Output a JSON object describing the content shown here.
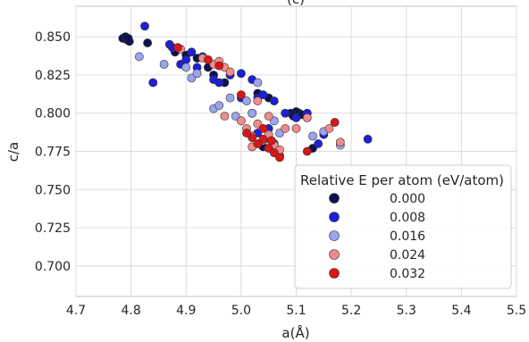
{
  "chart_data": {
    "type": "scatter",
    "title": "(c)",
    "xlabel": "a(Å)",
    "ylabel": "c/a",
    "xlim": [
      4.7,
      5.5
    ],
    "ylim": [
      0.68,
      0.87
    ],
    "xticks": [
      "4.7",
      "4.8",
      "4.9",
      "5.0",
      "5.1",
      "5.2",
      "5.3",
      "5.4",
      "5.5"
    ],
    "yticks": [
      "0.700",
      "0.725",
      "0.750",
      "0.775",
      "0.800",
      "0.825",
      "0.850"
    ],
    "grid": true,
    "legend": {
      "title": "Relative E per atom (eV/atom)",
      "placement": "lower-right",
      "entries": [
        {
          "label": "0.000",
          "color": "#0d1150"
        },
        {
          "label": "0.008",
          "color": "#1f1fd6"
        },
        {
          "label": "0.016",
          "color": "#9da4ee"
        },
        {
          "label": "0.024",
          "color": "#f28a8a"
        },
        {
          "label": "0.032",
          "color": "#d91616"
        }
      ]
    },
    "series": [
      {
        "color": "#0d1150",
        "points": [
          [
            4.785,
            0.849
          ],
          [
            4.79,
            0.85
          ],
          [
            4.793,
            0.848
          ],
          [
            4.797,
            0.847
          ],
          [
            4.795,
            0.849
          ],
          [
            4.83,
            0.846
          ],
          [
            4.88,
            0.84
          ],
          [
            4.9,
            0.838
          ],
          [
            4.92,
            0.836
          ],
          [
            4.94,
            0.83
          ],
          [
            4.95,
            0.825
          ],
          [
            4.97,
            0.82
          ],
          [
            5.03,
            0.813
          ],
          [
            5.05,
            0.81
          ],
          [
            5.09,
            0.8
          ],
          [
            5.1,
            0.801
          ],
          [
            5.105,
            0.8
          ],
          [
            5.11,
            0.799
          ],
          [
            5.095,
            0.798
          ],
          [
            5.02,
            0.785
          ],
          [
            5.04,
            0.778
          ],
          [
            5.06,
            0.775
          ],
          [
            5.07,
            0.772
          ],
          [
            5.13,
            0.777
          ]
        ]
      },
      {
        "color": "#1f1fd6",
        "points": [
          [
            4.825,
            0.857
          ],
          [
            4.84,
            0.82
          ],
          [
            4.87,
            0.845
          ],
          [
            4.875,
            0.843
          ],
          [
            4.89,
            0.832
          ],
          [
            4.9,
            0.835
          ],
          [
            4.91,
            0.84
          ],
          [
            4.92,
            0.83
          ],
          [
            4.93,
            0.837
          ],
          [
            4.95,
            0.822
          ],
          [
            4.96,
            0.82
          ],
          [
            4.98,
            0.825
          ],
          [
            5.0,
            0.826
          ],
          [
            5.02,
            0.822
          ],
          [
            5.03,
            0.81
          ],
          [
            5.04,
            0.812
          ],
          [
            5.06,
            0.808
          ],
          [
            5.08,
            0.8
          ],
          [
            5.1,
            0.797
          ],
          [
            5.12,
            0.8
          ],
          [
            5.14,
            0.78
          ],
          [
            5.15,
            0.786
          ],
          [
            5.23,
            0.783
          ],
          [
            5.03,
            0.787
          ],
          [
            5.05,
            0.79
          ],
          [
            5.06,
            0.78
          ],
          [
            5.02,
            0.8
          ],
          [
            5.0,
            0.81
          ]
        ]
      },
      {
        "color": "#9da4ee",
        "points": [
          [
            4.815,
            0.837
          ],
          [
            4.86,
            0.832
          ],
          [
            4.9,
            0.83
          ],
          [
            4.91,
            0.823
          ],
          [
            4.92,
            0.826
          ],
          [
            4.95,
            0.803
          ],
          [
            4.96,
            0.805
          ],
          [
            4.98,
            0.81
          ],
          [
            4.99,
            0.798
          ],
          [
            5.01,
            0.808
          ],
          [
            5.02,
            0.8
          ],
          [
            5.03,
            0.82
          ],
          [
            5.13,
            0.785
          ],
          [
            5.15,
            0.788
          ],
          [
            5.18,
            0.779
          ],
          [
            5.06,
            0.795
          ],
          [
            5.07,
            0.787
          ]
        ]
      },
      {
        "color": "#f28a8a",
        "points": [
          [
            4.89,
            0.842
          ],
          [
            4.93,
            0.836
          ],
          [
            4.95,
            0.832
          ],
          [
            4.96,
            0.834
          ],
          [
            4.97,
            0.83
          ],
          [
            4.98,
            0.827
          ],
          [
            5.0,
            0.795
          ],
          [
            5.01,
            0.79
          ],
          [
            5.02,
            0.785
          ],
          [
            5.03,
            0.793
          ],
          [
            5.04,
            0.782
          ],
          [
            5.05,
            0.786
          ],
          [
            5.06,
            0.779
          ],
          [
            5.07,
            0.776
          ],
          [
            5.08,
            0.79
          ],
          [
            5.1,
            0.79
          ],
          [
            5.12,
            0.797
          ],
          [
            5.16,
            0.79
          ],
          [
            5.18,
            0.781
          ],
          [
            5.03,
            0.808
          ],
          [
            5.05,
            0.798
          ],
          [
            4.97,
            0.798
          ],
          [
            5.02,
            0.778
          ]
        ]
      },
      {
        "color": "#d91616",
        "points": [
          [
            4.885,
            0.843
          ],
          [
            4.94,
            0.835
          ],
          [
            4.96,
            0.831
          ],
          [
            5.0,
            0.812
          ],
          [
            5.02,
            0.784
          ],
          [
            5.03,
            0.78
          ],
          [
            5.04,
            0.783
          ],
          [
            5.05,
            0.777
          ],
          [
            5.06,
            0.774
          ],
          [
            5.07,
            0.771
          ],
          [
            5.04,
            0.79
          ],
          [
            5.12,
            0.775
          ],
          [
            5.17,
            0.794
          ],
          [
            5.01,
            0.787
          ],
          [
            5.055,
            0.782
          ]
        ]
      }
    ]
  }
}
